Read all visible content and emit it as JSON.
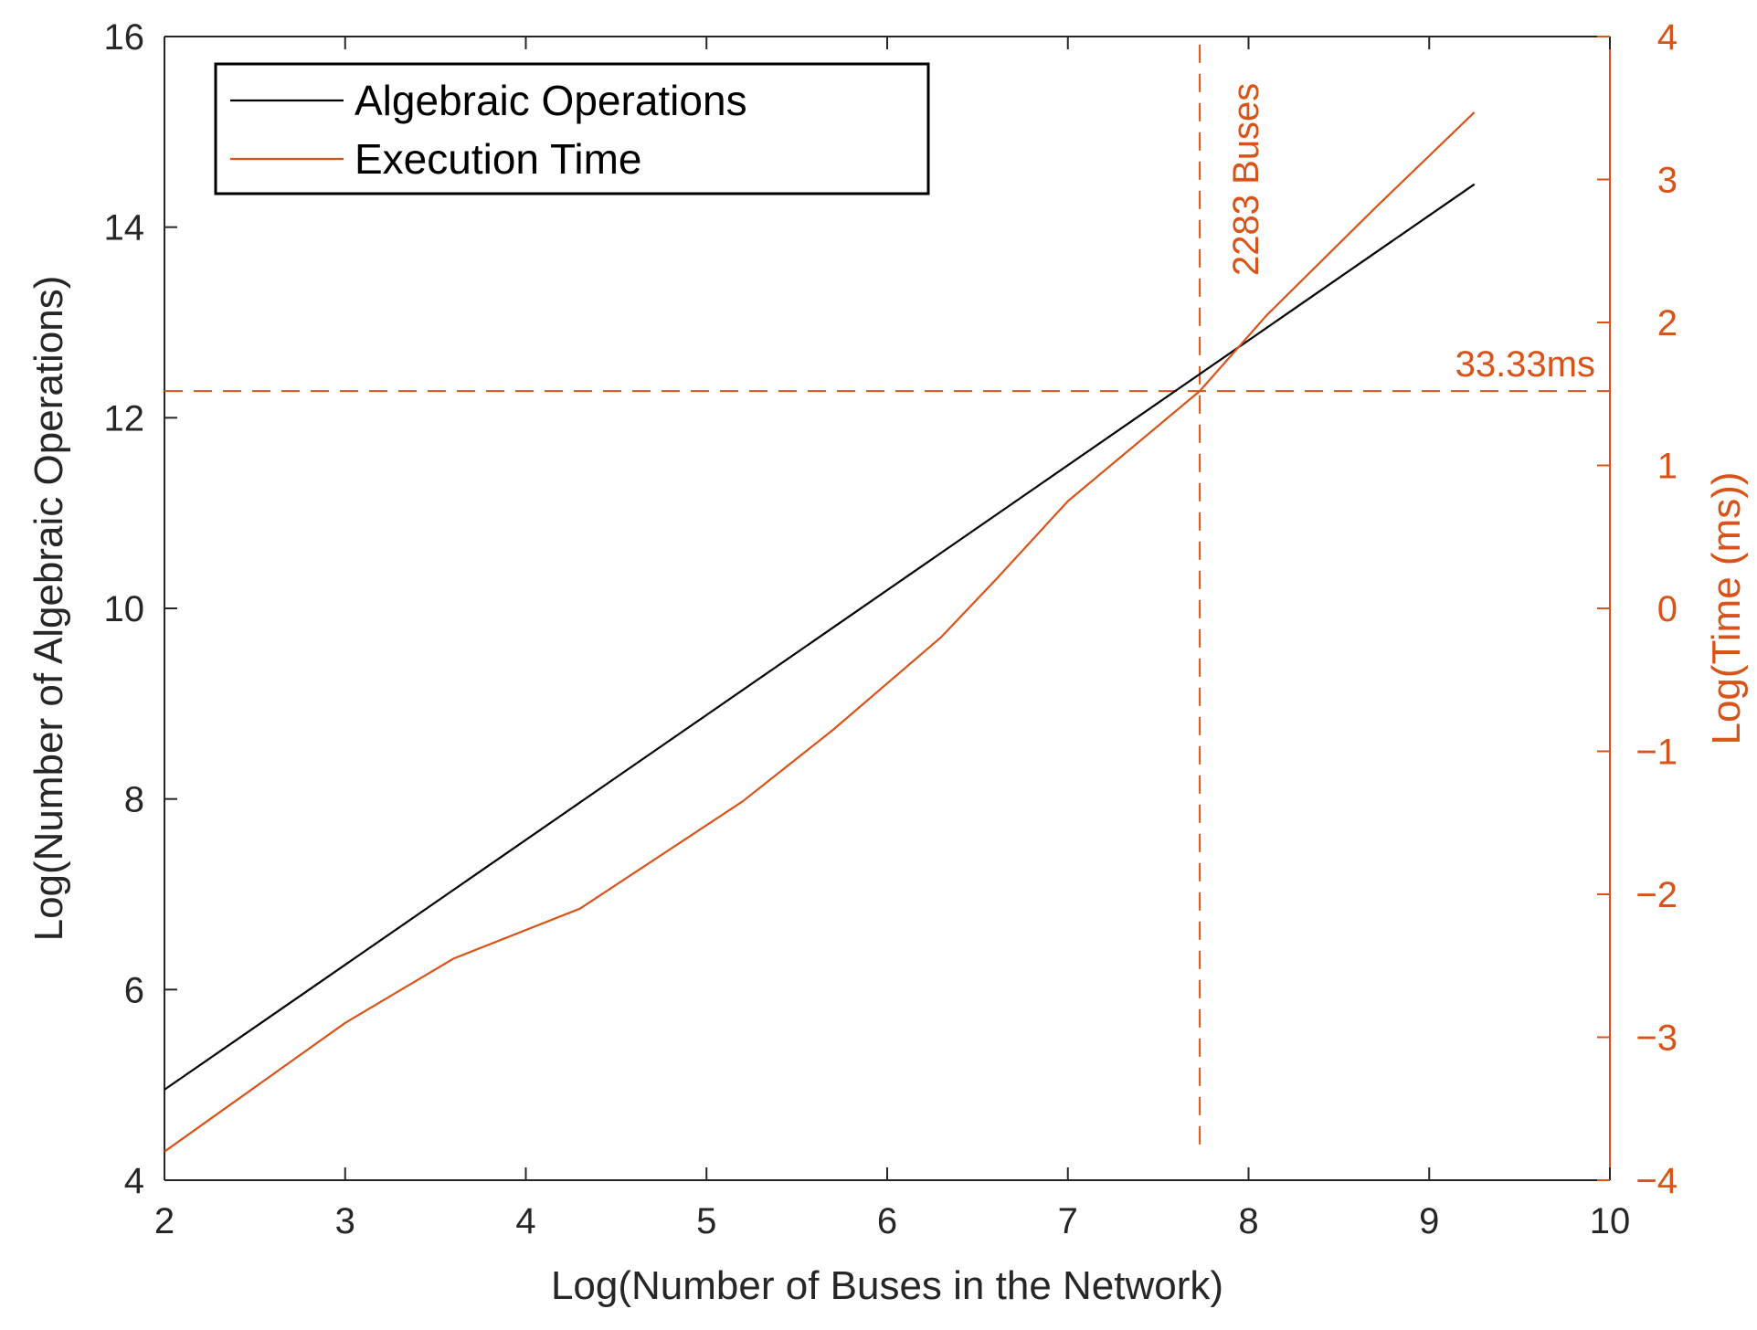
{
  "chart_data": {
    "type": "line",
    "xlabel": "Log(Number of Buses in the Network)",
    "ylabel_left": "Log(Number of Algebraic Operations)",
    "ylabel_right": "Log(Time (ms))",
    "xlim": [
      2,
      10
    ],
    "ylim_left": [
      4,
      16
    ],
    "ylim_right": [
      -4,
      4
    ],
    "x_ticks": [
      2,
      3,
      4,
      5,
      6,
      7,
      8,
      9,
      10
    ],
    "y_left_ticks": [
      4,
      6,
      8,
      10,
      12,
      14,
      16
    ],
    "y_right_ticks": [
      -4,
      -3,
      -2,
      -1,
      0,
      1,
      2,
      3,
      4
    ],
    "x_tick_labels": [
      "2",
      "3",
      "4",
      "5",
      "6",
      "7",
      "8",
      "9",
      "10"
    ],
    "y_left_tick_labels": [
      "4",
      "6",
      "8",
      "10",
      "12",
      "14",
      "16"
    ],
    "y_right_tick_labels": [
      "−4",
      "−3",
      "−2",
      "−1",
      "0",
      "1",
      "2",
      "3",
      "4"
    ],
    "grid": false,
    "legend_position": "top-left",
    "colors": {
      "black": "#000000",
      "orange": "#d95319"
    },
    "series": [
      {
        "name": "Algebraic Operations",
        "axis": "left",
        "color": "#000000",
        "x": [
          2.0,
          9.25
        ],
        "y": [
          4.95,
          14.45
        ]
      },
      {
        "name": "Execution Time",
        "axis": "right",
        "color": "#d95319",
        "x": [
          2.0,
          2.7,
          3.0,
          3.6,
          4.3,
          5.2,
          5.7,
          6.3,
          6.6,
          7.0,
          7.73,
          8.1,
          8.7,
          9.25
        ],
        "y": [
          -3.8,
          -3.17,
          -2.9,
          -2.45,
          -2.1,
          -1.35,
          -0.85,
          -0.2,
          0.2,
          0.75,
          1.52,
          2.05,
          2.8,
          3.47
        ]
      }
    ],
    "annotations": [
      {
        "text": "2283 Buses",
        "orientation": "vertical",
        "x": 7.73,
        "color": "#d95319"
      },
      {
        "text": "33.33ms",
        "orientation": "horizontal",
        "y_right": 1.52,
        "color": "#d95319"
      }
    ],
    "reference_lines": [
      {
        "type": "vertical",
        "x": 7.73,
        "from_y_right": -3.75,
        "to_y_right": 4,
        "style": "dashed",
        "color": "#d95319"
      },
      {
        "type": "horizontal",
        "y_right": 1.52,
        "from_x": 2,
        "to_x": 10,
        "style": "dashed",
        "color": "#d95319"
      }
    ]
  }
}
